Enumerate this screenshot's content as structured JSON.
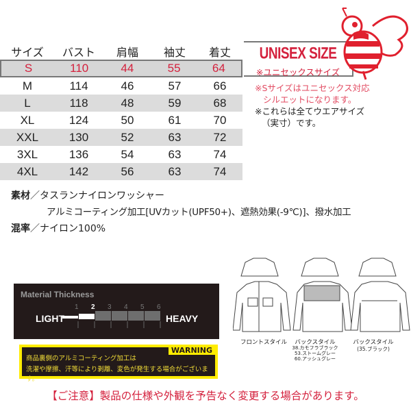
{
  "size_table": {
    "headers": [
      "サイズ",
      "バスト",
      "肩幅",
      "袖丈",
      "着丈"
    ],
    "rows": [
      [
        "S",
        "110",
        "44",
        "55",
        "64"
      ],
      [
        "M",
        "114",
        "46",
        "57",
        "66"
      ],
      [
        "L",
        "118",
        "48",
        "59",
        "68"
      ],
      [
        "XL",
        "124",
        "50",
        "61",
        "70"
      ],
      [
        "XXL",
        "130",
        "52",
        "63",
        "72"
      ],
      [
        "3XL",
        "136",
        "54",
        "63",
        "74"
      ],
      [
        "4XL",
        "142",
        "56",
        "63",
        "74"
      ]
    ],
    "highlight_color": "#d4213d"
  },
  "unisex": {
    "title": "UNISEX SIZE",
    "subtitle": "※ユニセックスサイズ"
  },
  "notes": {
    "red_1": "※Sサイズはユニセックス対応",
    "red_2": "シルエットになります。",
    "black_1": "※これらは全てウエアサイズ",
    "black_2": "（実寸）です。"
  },
  "material": {
    "label1": "素材",
    "value1": "／タスランナイロンワッシャー",
    "value1b": "アルミコーティング加工[UVカット(UPF50+)、遮熱効果(-9℃)]、撥水加工",
    "label2": "混率",
    "value2": "／ナイロン100%"
  },
  "thickness": {
    "title": "Material Thickness",
    "light": "LIGHT",
    "heavy": "HEAVY",
    "scale": [
      "1",
      "2",
      "3",
      "4",
      "5",
      "6"
    ],
    "level": 2
  },
  "warning": {
    "label": "WARNING",
    "line1": "商品裏側のアルミコーティング加工は",
    "line2": "洗濯や摩擦、汗等により剥離、変色が発生する場合がございます。"
  },
  "jackets": {
    "front": "フロントスタイル",
    "back1": "バックスタイル",
    "back1_colors": [
      "38.カモフラブラック",
      "53.ストームグレー",
      "60.アッシュグレー"
    ],
    "back2": "バックスタイル",
    "back2_colors": "(35.ブラック)"
  },
  "notice": "【ご注意】製品の仕様や外観を予告なく変更する場合があります。"
}
